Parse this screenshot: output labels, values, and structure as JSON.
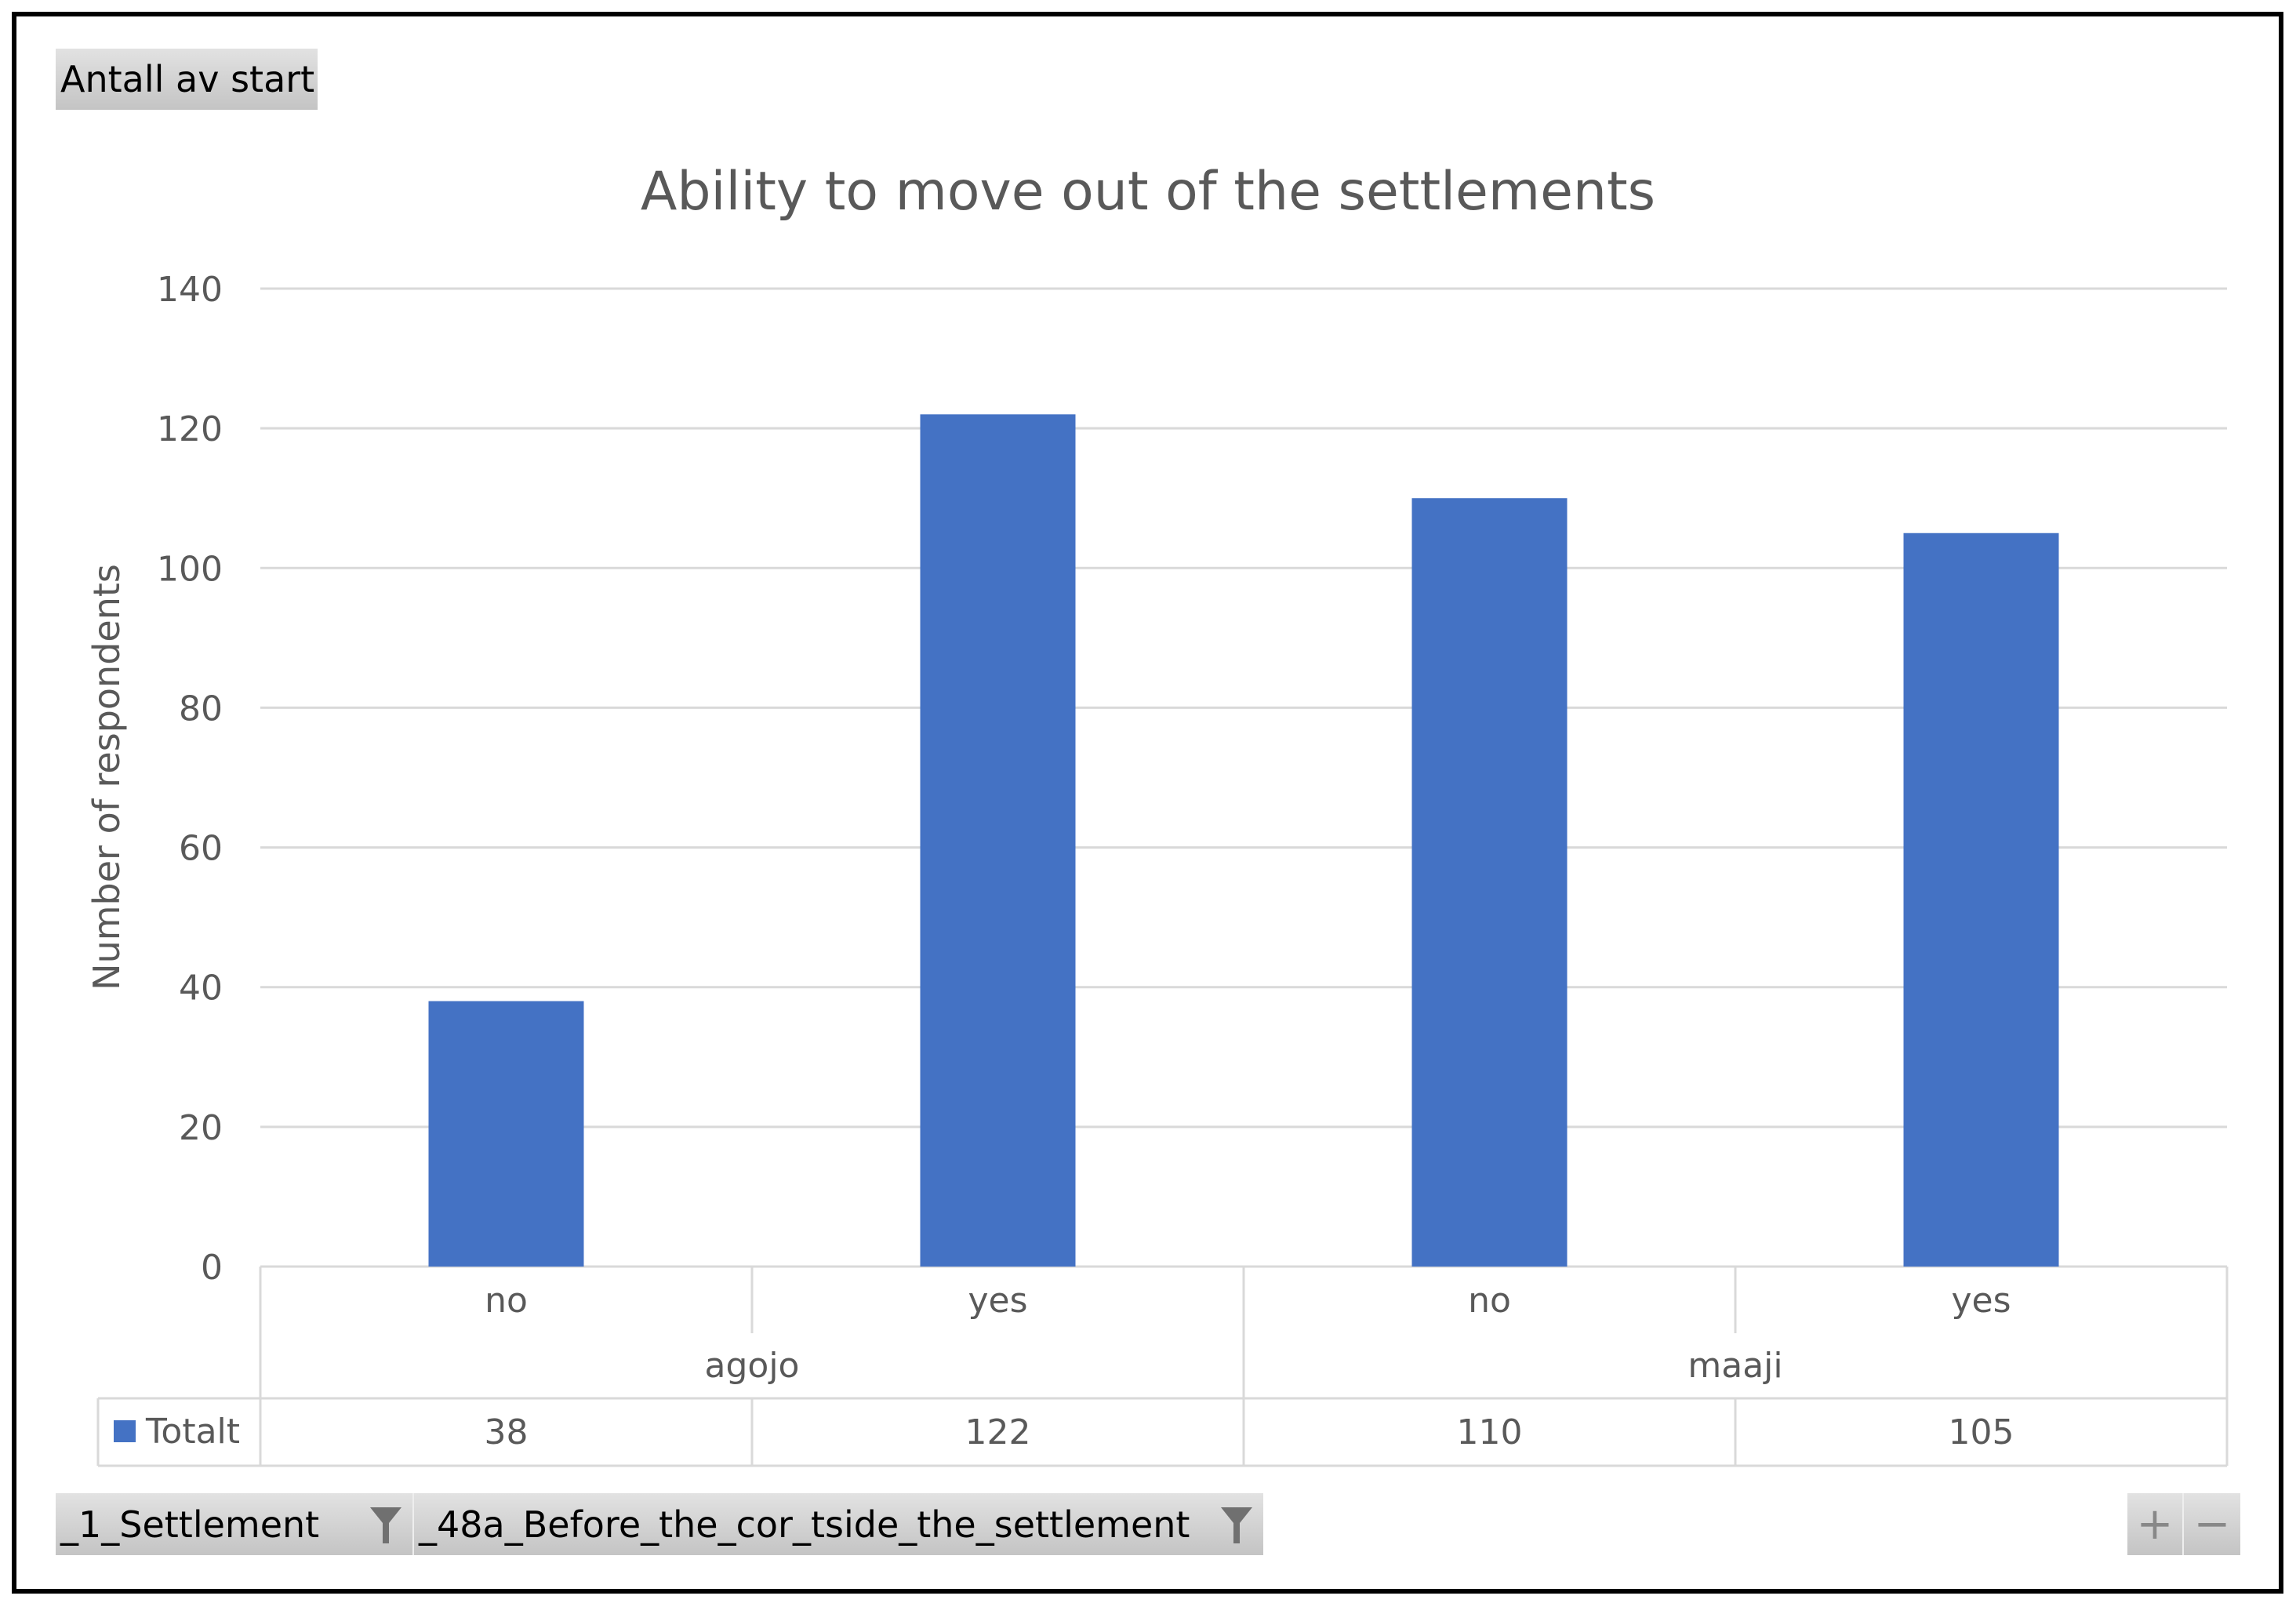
{
  "value_button": {
    "label": "Antall av start"
  },
  "filter_buttons": [
    {
      "label": "_1_Settlement",
      "icon": "filter-icon"
    },
    {
      "label": "_48a_Before_the_cor_tside_the_settlement",
      "icon": "filter-icon"
    }
  ],
  "zoom_buttons": {
    "expand": "+",
    "collapse": "−"
  },
  "colors": {
    "bar": "#4472C4",
    "grid": "#d9d9d9",
    "text": "#595959"
  },
  "chart_data": {
    "type": "bar",
    "title": "Ability to move out of the settlements",
    "ylabel": "Number of respondents",
    "xlabel": "",
    "ylim": [
      0,
      140
    ],
    "yticks": [
      0,
      20,
      40,
      60,
      80,
      100,
      120,
      140
    ],
    "grid": true,
    "categories": [
      "no",
      "yes",
      "no",
      "yes"
    ],
    "groups": [
      {
        "label": "agojo",
        "span": 2
      },
      {
        "label": "maaji",
        "span": 2
      }
    ],
    "series": [
      {
        "name": "Totalt",
        "values": [
          38,
          122,
          110,
          105
        ]
      }
    ],
    "legend": "data-table"
  }
}
